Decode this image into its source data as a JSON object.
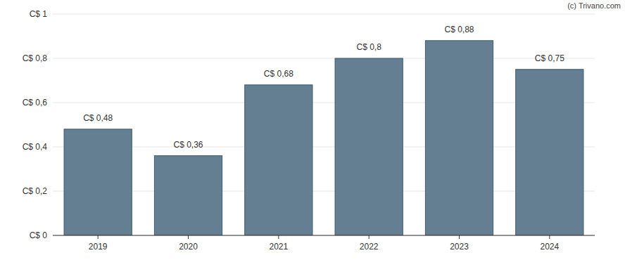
{
  "chart_data": {
    "type": "bar",
    "categories": [
      "2019",
      "2020",
      "2021",
      "2022",
      "2023",
      "2024"
    ],
    "values": [
      0.48,
      0.36,
      0.68,
      0.8,
      0.88,
      0.75
    ],
    "value_labels": [
      "C$ 0,48",
      "C$ 0,36",
      "C$ 0,68",
      "C$ 0,8",
      "C$ 0,88",
      "C$ 0,75"
    ],
    "data_labels": true,
    "color": "#647f92",
    "ylim": [
      0,
      1
    ],
    "yticks": [
      {
        "value": 0,
        "label": "C$ 0"
      },
      {
        "value": 0.2,
        "label": "C$ 0,2"
      },
      {
        "value": 0.4,
        "label": "C$ 0,4"
      },
      {
        "value": 0.6,
        "label": "C$ 0,6"
      },
      {
        "value": 0.8,
        "label": "C$ 0,8"
      },
      {
        "value": 1,
        "label": "C$ 1"
      }
    ],
    "grid": true,
    "annotations": [
      "(c) Trivano.com"
    ]
  }
}
